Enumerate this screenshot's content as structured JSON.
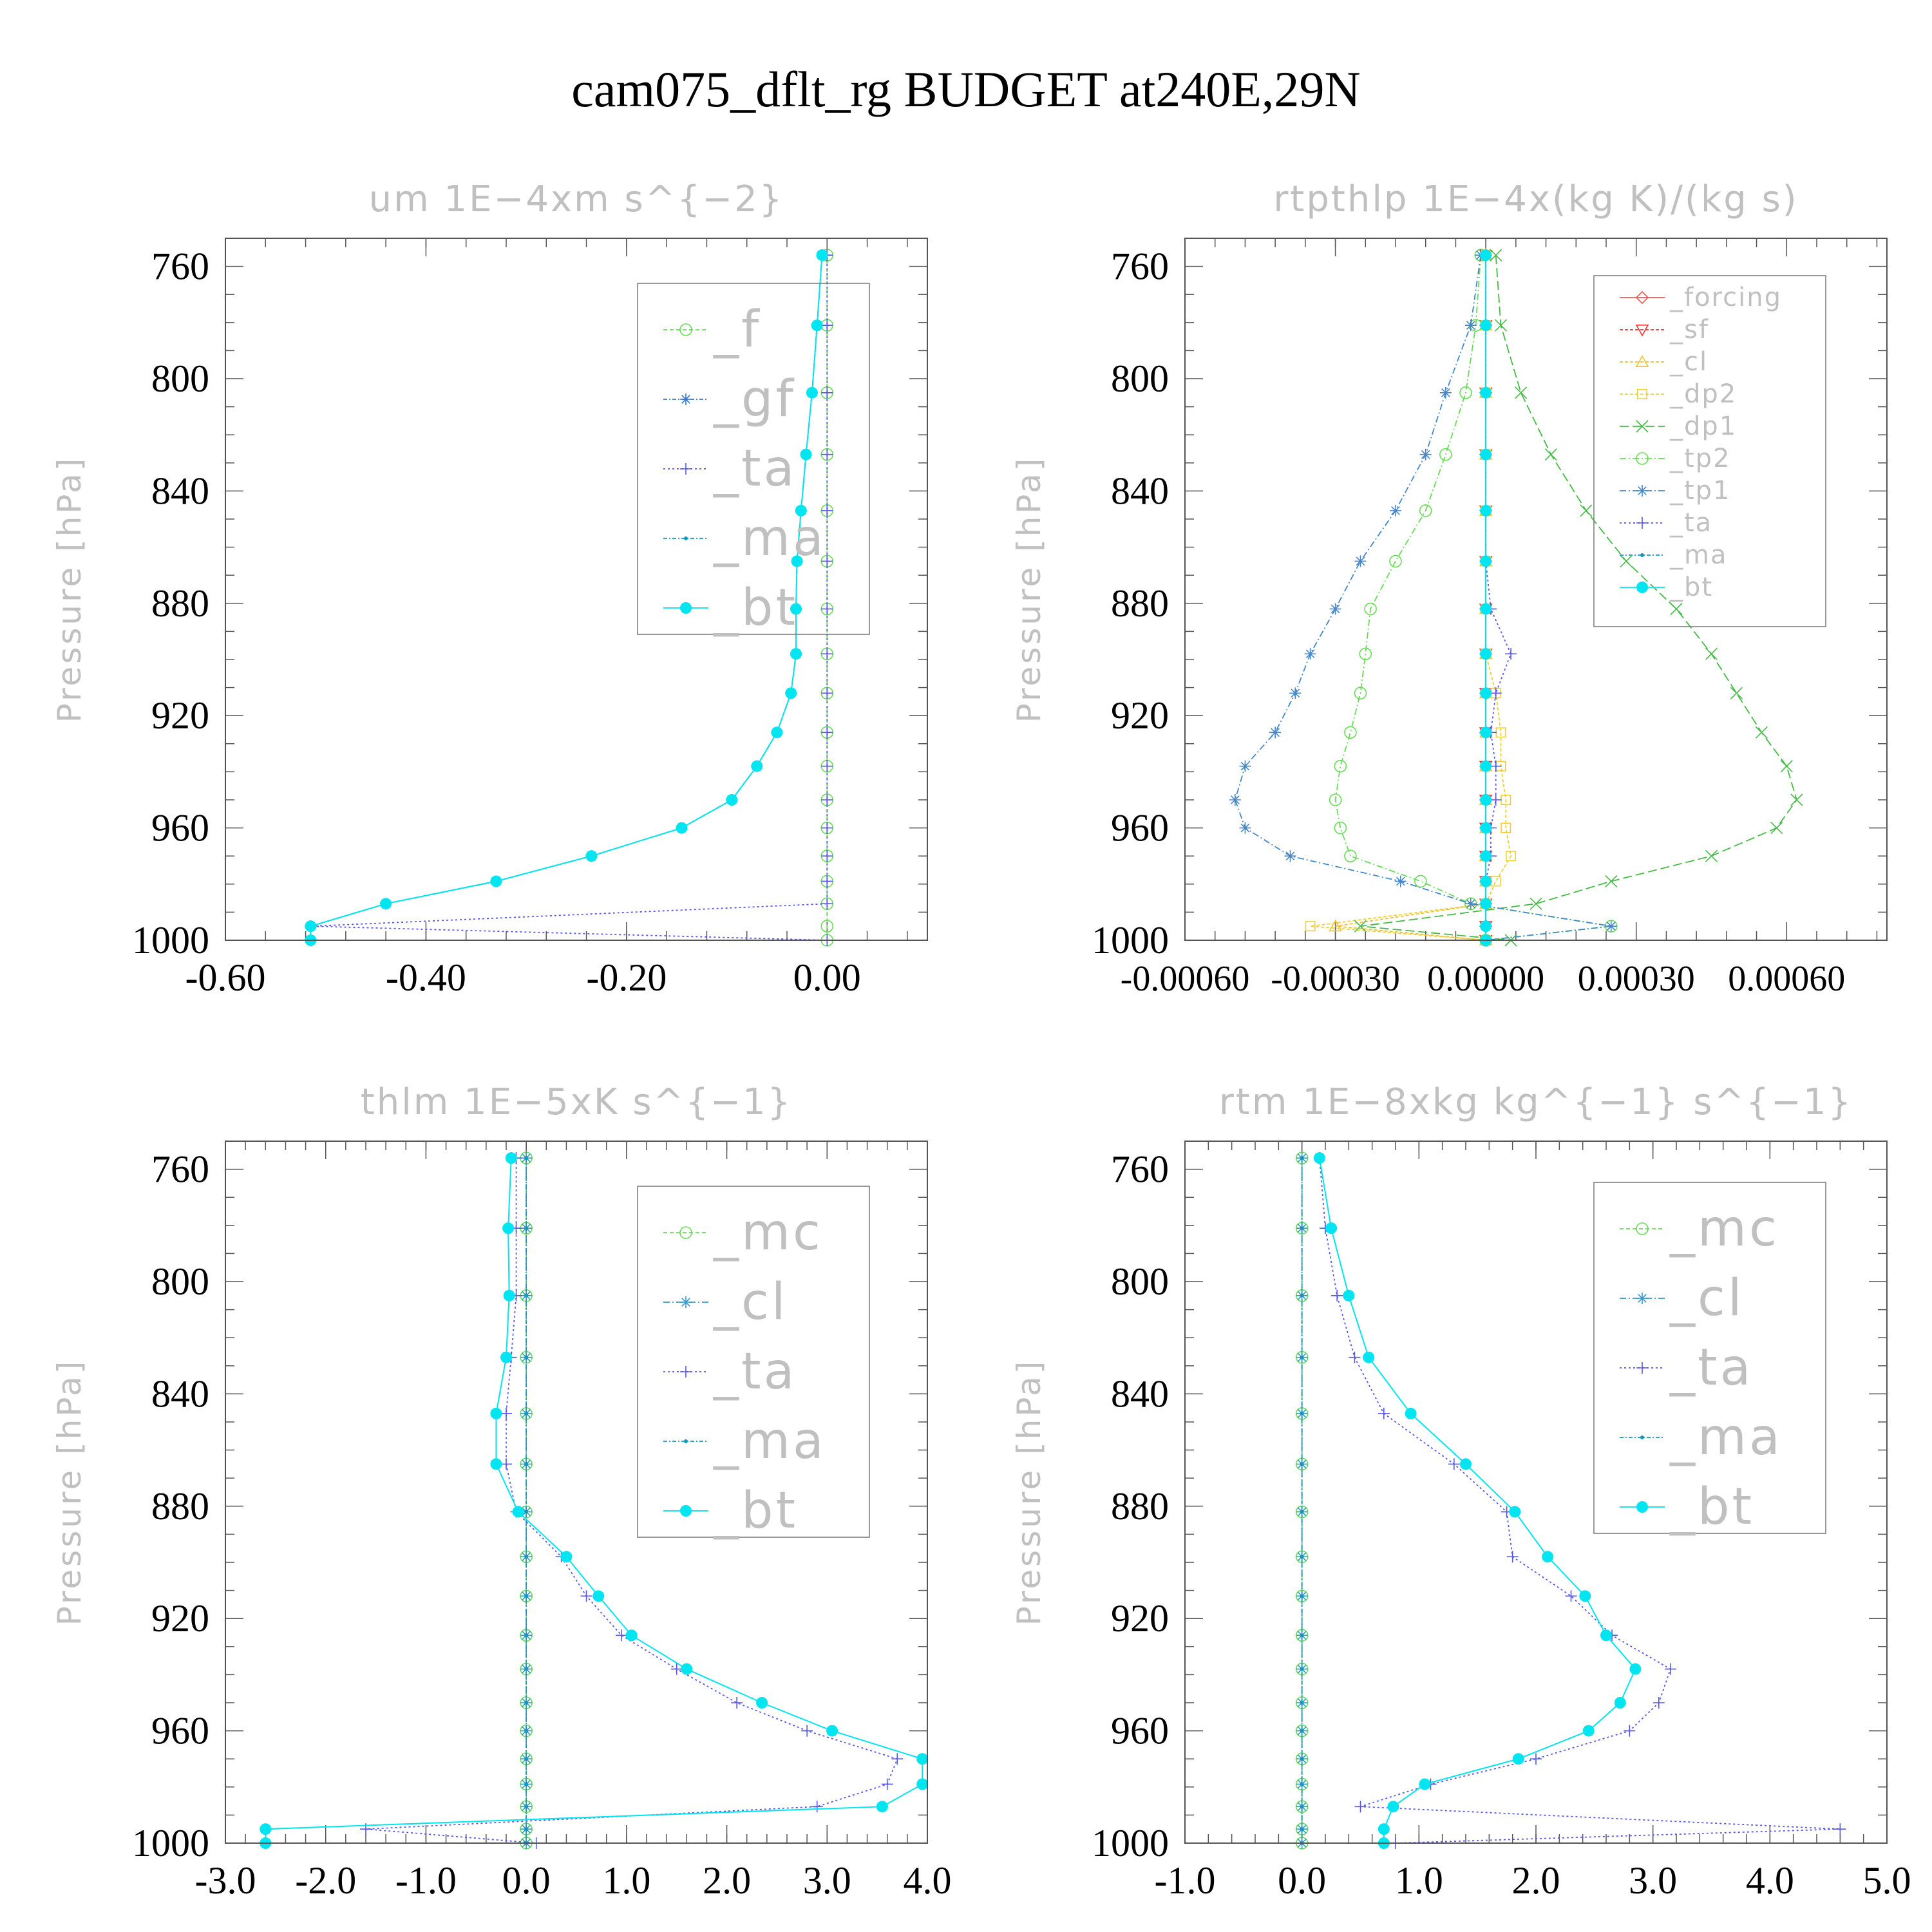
{
  "figure": {
    "title": "cam075_dflt_rg  BUDGET at240E,29N"
  },
  "colors": {
    "f": "#66dd55",
    "gf": "#3377cc",
    "ta": "#5555ee",
    "ma": "#1199bb",
    "bt": "#00e5f0",
    "forcing": "#ee5555",
    "sf": "#ee3333",
    "cl_warm": "#f0c030",
    "dp2": "#f0d030",
    "dp1": "#44bb44",
    "tp2": "#66dd55",
    "tp1": "#4488cc",
    "mc": "#66dd55",
    "cl": "#3399cc",
    "axis": "#555555",
    "ghost_text": "#c0c0c0"
  },
  "chart_data": [
    {
      "type": "line",
      "title": "um   1E−4xm s^{−2}",
      "ylabel": "Pressure [hPa]",
      "xlim": [
        -0.6,
        0.1
      ],
      "ylim": [
        1000,
        750
      ],
      "xticks": [
        -0.6,
        -0.4,
        -0.2,
        0.0
      ],
      "xtick_labels": [
        "-0.60",
        "-0.40",
        "-0.20",
        "0.00"
      ],
      "yticks": [
        760,
        800,
        840,
        880,
        920,
        960,
        1000
      ],
      "ytick_labels": [
        "760",
        "800",
        "840",
        "880",
        "920",
        "960",
        "1000"
      ],
      "legend_position": "top-right",
      "pressure": [
        756,
        781,
        805,
        827,
        847,
        865,
        882,
        898,
        912,
        926,
        938,
        950,
        960,
        970,
        979,
        987,
        995,
        1000
      ],
      "series": [
        {
          "name": "_f",
          "key": "f",
          "marker": "circle",
          "dash": "6,4",
          "values": [
            0,
            0,
            0,
            0,
            0,
            0,
            0,
            0,
            0,
            0,
            0,
            0,
            0,
            0,
            0,
            0,
            0,
            0
          ]
        },
        {
          "name": "_gf",
          "key": "gf",
          "marker": "star",
          "dash": "6,3,2,3",
          "values": [
            -0.005,
            -0.01,
            -0.015,
            -0.021,
            -0.026,
            -0.03,
            -0.031,
            -0.031,
            -0.036,
            -0.05,
            -0.07,
            -0.095,
            -0.145,
            -0.235,
            -0.33,
            -0.44,
            -0.515,
            -0.515
          ]
        },
        {
          "name": "_ta",
          "key": "ta",
          "marker": "plus",
          "dash": "3,4",
          "values": [
            0,
            0,
            0,
            0,
            0,
            0,
            0,
            0,
            0,
            0,
            0,
            0,
            0,
            0,
            0,
            0,
            -0.515,
            0
          ]
        },
        {
          "name": "_ma",
          "key": "ma",
          "marker": "dot",
          "dash": "6,3,2,3",
          "values": [
            -0.005,
            -0.01,
            -0.015,
            -0.021,
            -0.026,
            -0.03,
            -0.031,
            -0.031,
            -0.036,
            -0.05,
            -0.07,
            -0.095,
            -0.145,
            -0.235,
            -0.33,
            -0.44,
            -0.515,
            -0.515
          ]
        },
        {
          "name": "_bt",
          "key": "bt",
          "marker": "bigdot",
          "dash": "",
          "values": [
            -0.005,
            -0.01,
            -0.015,
            -0.021,
            -0.026,
            -0.03,
            -0.031,
            -0.031,
            -0.036,
            -0.05,
            -0.07,
            -0.095,
            -0.145,
            -0.235,
            -0.33,
            -0.44,
            -0.515,
            -0.515
          ]
        }
      ]
    },
    {
      "type": "line",
      "title": "rtpthlp   1E−4x(kg K)/(kg s)",
      "ylabel": "Pressure [hPa]",
      "xlim": [
        -0.0006,
        0.0008
      ],
      "ylim": [
        1000,
        750
      ],
      "xticks": [
        -0.0006,
        -0.0003,
        0.0,
        0.0003,
        0.0006
      ],
      "xtick_labels": [
        "-0.00060",
        "-0.00030",
        "0.00000",
        "0.00030",
        "0.00060"
      ],
      "yticks": [
        760,
        800,
        840,
        880,
        920,
        960,
        1000
      ],
      "ytick_labels": [
        "760",
        "800",
        "840",
        "880",
        "920",
        "960",
        "1000"
      ],
      "legend_position": "top-right",
      "pressure": [
        756,
        781,
        805,
        827,
        847,
        865,
        882,
        898,
        912,
        926,
        938,
        950,
        960,
        970,
        979,
        987,
        995,
        1000
      ],
      "series": [
        {
          "name": "_forcing",
          "key": "forcing",
          "marker": "diamond",
          "dash": "",
          "values": [
            0,
            0,
            0,
            0,
            0,
            0,
            0,
            0,
            0,
            0,
            0,
            0,
            0,
            0,
            0,
            0,
            0,
            0
          ]
        },
        {
          "name": "_sf",
          "key": "sf",
          "marker": "tridown",
          "dash": "5,3",
          "values": [
            0,
            0,
            0,
            0,
            0,
            0,
            0,
            0,
            0,
            0,
            0,
            0,
            0,
            0,
            0,
            0,
            0,
            0
          ]
        },
        {
          "name": "_cl",
          "key": "cl_warm",
          "marker": "triup",
          "dash": "5,3",
          "values": [
            0,
            0,
            0,
            0,
            0,
            0,
            0,
            0,
            0,
            0,
            0,
            0,
            0,
            0,
            0,
            0,
            -0.0003,
            0
          ]
        },
        {
          "name": "_dp2",
          "key": "dp2",
          "marker": "square",
          "dash": "5,3",
          "values": [
            0,
            0,
            0,
            0,
            0,
            0,
            0,
            0,
            2e-05,
            3e-05,
            3e-05,
            4e-05,
            4e-05,
            5e-05,
            2e-05,
            0,
            -0.00035,
            0
          ]
        },
        {
          "name": "_dp1",
          "key": "dp1",
          "marker": "x",
          "dash": "14,6",
          "values": [
            2e-05,
            3e-05,
            7e-05,
            0.00013,
            0.0002,
            0.00028,
            0.00038,
            0.00045,
            0.0005,
            0.00055,
            0.0006,
            0.00062,
            0.00058,
            0.00045,
            0.00025,
            0.0001,
            -0.00025,
            5e-05
          ]
        },
        {
          "name": "_tp2",
          "key": "tp2",
          "marker": "circle",
          "dash": "10,4,2,4",
          "values": [
            -1e-05,
            -2e-05,
            -4e-05,
            -8e-05,
            -0.00012,
            -0.00018,
            -0.00023,
            -0.00024,
            -0.00025,
            -0.00027,
            -0.00029,
            -0.0003,
            -0.00029,
            -0.00027,
            -0.00013,
            -3e-05,
            0.00025,
            0
          ]
        },
        {
          "name": "_tp1",
          "key": "tp1",
          "marker": "star",
          "dash": "10,4,2,4",
          "values": [
            -1e-05,
            -3e-05,
            -8e-05,
            -0.00012,
            -0.00018,
            -0.00025,
            -0.0003,
            -0.00035,
            -0.00038,
            -0.00042,
            -0.00048,
            -0.0005,
            -0.00048,
            -0.00039,
            -0.00017,
            -3e-05,
            0.00025,
            0
          ]
        },
        {
          "name": "_ta",
          "key": "ta",
          "marker": "plus",
          "dash": "3,4",
          "values": [
            0,
            0,
            0,
            0,
            0,
            0,
            1e-05,
            5e-05,
            2e-05,
            1e-05,
            2e-05,
            2e-05,
            1e-05,
            1e-05,
            0,
            0,
            0,
            0
          ]
        },
        {
          "name": "_ma",
          "key": "ma",
          "marker": "dot",
          "dash": "6,3,2,3",
          "values": [
            0,
            0,
            0,
            0,
            0,
            0,
            0,
            0,
            0,
            0,
            0,
            0,
            0,
            0,
            0,
            0,
            0,
            0
          ]
        },
        {
          "name": "_bt",
          "key": "bt",
          "marker": "bigdot",
          "dash": "",
          "values": [
            0,
            0,
            0,
            0,
            0,
            0,
            0,
            0,
            0,
            0,
            0,
            0,
            0,
            0,
            0,
            0,
            0,
            0
          ]
        }
      ]
    },
    {
      "type": "line",
      "title": "thlm   1E−5xK s^{−1}",
      "ylabel": "Pressure [hPa]",
      "xlim": [
        -3.0,
        4.0
      ],
      "ylim": [
        1000,
        750
      ],
      "xticks": [
        -3,
        -2,
        -1,
        0,
        1,
        2,
        3,
        4
      ],
      "xtick_labels": [
        "-3.0",
        "-2.0",
        "-1.0",
        "0.0",
        "1.0",
        "2.0",
        "3.0",
        "4.0"
      ],
      "yticks": [
        760,
        800,
        840,
        880,
        920,
        960,
        1000
      ],
      "ytick_labels": [
        "760",
        "800",
        "840",
        "880",
        "920",
        "960",
        "1000"
      ],
      "legend_position": "top-right",
      "pressure": [
        756,
        781,
        805,
        827,
        847,
        865,
        882,
        898,
        912,
        926,
        938,
        950,
        960,
        970,
        979,
        987,
        995,
        1000
      ],
      "series": [
        {
          "name": "_mc",
          "key": "mc",
          "marker": "circle",
          "dash": "6,4",
          "values": [
            0,
            0,
            0,
            0,
            0,
            0,
            0,
            0,
            0,
            0,
            0,
            0,
            0,
            0,
            0,
            0,
            0,
            0
          ]
        },
        {
          "name": "_cl",
          "key": "cl",
          "marker": "star",
          "dash": "10,4,2,4",
          "values": [
            0,
            0,
            0,
            0,
            0,
            0,
            0,
            0,
            0,
            0,
            0,
            0,
            0,
            0,
            0,
            0,
            0,
            0
          ]
        },
        {
          "name": "_ta",
          "key": "ta",
          "marker": "plus",
          "dash": "3,4",
          "values": [
            -0.1,
            -0.1,
            -0.1,
            -0.15,
            -0.2,
            -0.2,
            -0.1,
            0.35,
            0.6,
            0.95,
            1.5,
            2.1,
            2.8,
            3.7,
            3.6,
            2.9,
            -1.6,
            0.1
          ]
        },
        {
          "name": "_ma",
          "key": "ma",
          "marker": "dot",
          "dash": "6,3,2,3",
          "values": [
            0,
            0,
            0,
            0,
            0,
            0,
            0,
            0,
            0,
            0,
            0,
            0,
            0,
            0,
            0,
            0,
            0,
            0
          ]
        },
        {
          "name": "_bt",
          "key": "bt",
          "marker": "bigdot",
          "dash": "",
          "values": [
            -0.15,
            -0.18,
            -0.17,
            -0.2,
            -0.3,
            -0.3,
            -0.08,
            0.4,
            0.72,
            1.05,
            1.6,
            2.35,
            3.05,
            3.95,
            3.95,
            3.55,
            -2.6,
            -2.6
          ]
        }
      ]
    },
    {
      "type": "line",
      "title": "rtm   1E−8xkg kg^{−1} s^{−1}",
      "ylabel": "Pressure [hPa]",
      "xlim": [
        -1.0,
        5.0
      ],
      "ylim": [
        1000,
        750
      ],
      "xticks": [
        -1,
        0,
        1,
        2,
        3,
        4,
        5
      ],
      "xtick_labels": [
        "-1.0",
        "0.0",
        "1.0",
        "2.0",
        "3.0",
        "4.0",
        "5.0"
      ],
      "yticks": [
        760,
        800,
        840,
        880,
        920,
        960,
        1000
      ],
      "ytick_labels": [
        "760",
        "800",
        "840",
        "880",
        "920",
        "960",
        "1000"
      ],
      "legend_position": "top-right",
      "pressure": [
        756,
        781,
        805,
        827,
        847,
        865,
        882,
        898,
        912,
        926,
        938,
        950,
        960,
        970,
        979,
        987,
        995,
        1000
      ],
      "series": [
        {
          "name": "_mc",
          "key": "mc",
          "marker": "circle",
          "dash": "6,4",
          "values": [
            0,
            0,
            0,
            0,
            0,
            0,
            0,
            0,
            0,
            0,
            0,
            0,
            0,
            0,
            0,
            0,
            0,
            0
          ]
        },
        {
          "name": "_cl",
          "key": "cl",
          "marker": "star",
          "dash": "10,4,2,4",
          "values": [
            0,
            0,
            0,
            0,
            0,
            0,
            0,
            0,
            0,
            0,
            0,
            0,
            0,
            0,
            0,
            0,
            0,
            0
          ]
        },
        {
          "name": "_ta",
          "key": "ta",
          "marker": "plus",
          "dash": "3,4",
          "values": [
            0.15,
            0.2,
            0.3,
            0.45,
            0.7,
            1.3,
            1.75,
            1.8,
            2.3,
            2.65,
            3.15,
            3.05,
            2.8,
            2.0,
            1.1,
            0.5,
            4.6,
            0.8
          ]
        },
        {
          "name": "_ma",
          "key": "ma",
          "marker": "dot",
          "dash": "6,3,2,3",
          "values": [
            0,
            0,
            0,
            0,
            0,
            0,
            0,
            0,
            0,
            0,
            0,
            0,
            0,
            0,
            0,
            0,
            0,
            0
          ]
        },
        {
          "name": "_bt",
          "key": "bt",
          "marker": "bigdot",
          "dash": "",
          "values": [
            0.15,
            0.25,
            0.4,
            0.57,
            0.93,
            1.4,
            1.82,
            2.1,
            2.42,
            2.6,
            2.85,
            2.72,
            2.45,
            1.85,
            1.05,
            0.78,
            0.7,
            0.7
          ]
        }
      ]
    }
  ]
}
